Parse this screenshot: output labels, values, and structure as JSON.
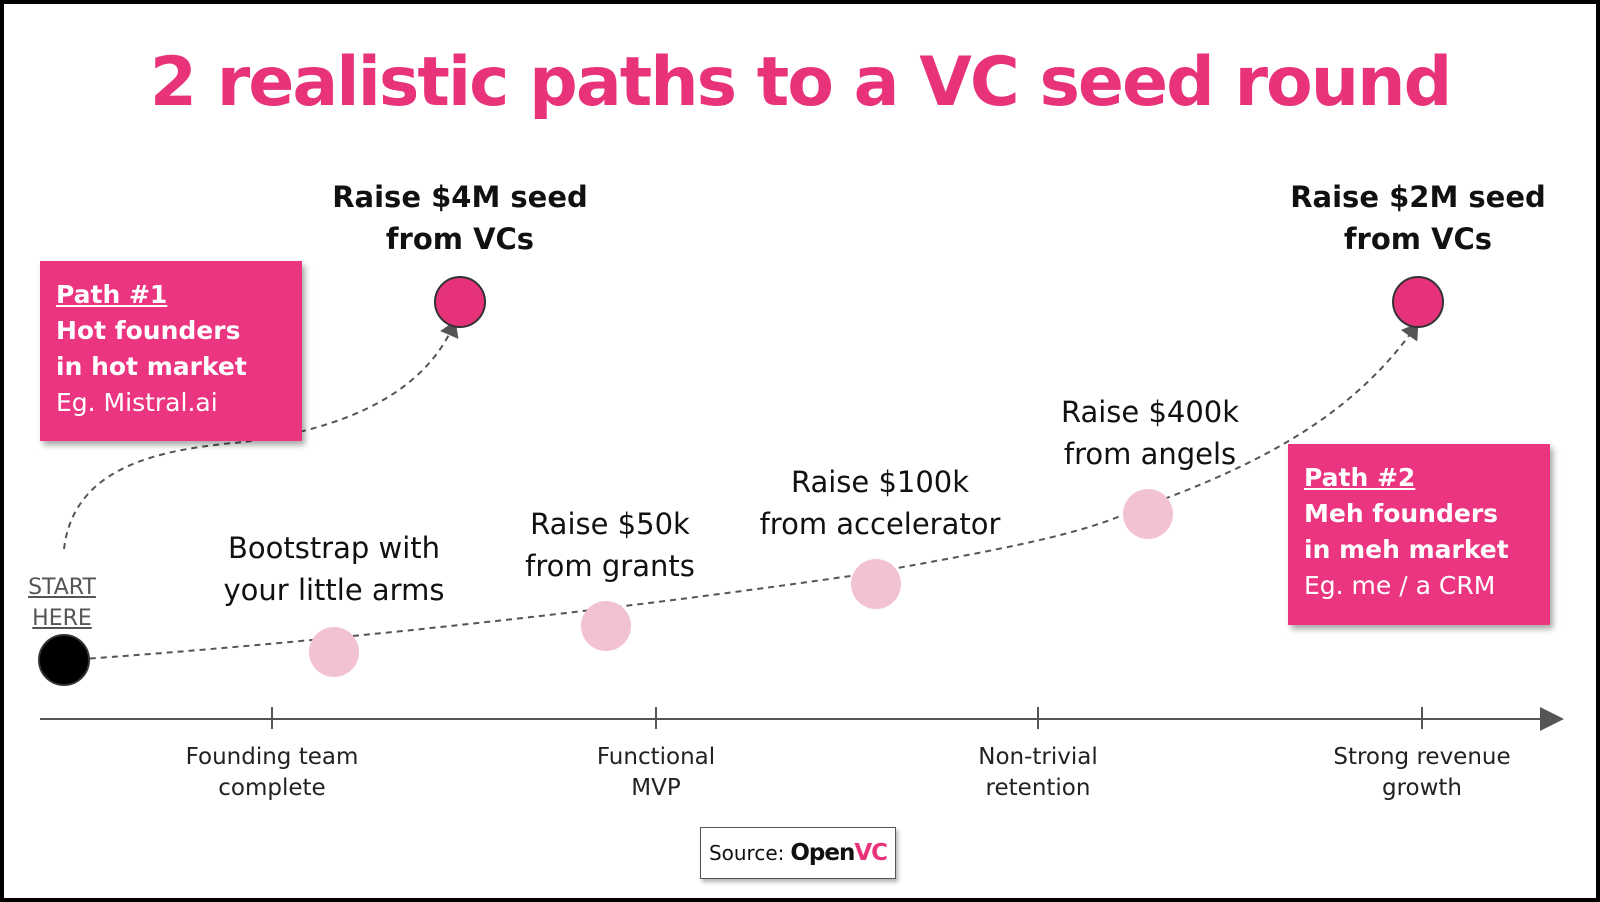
{
  "title": "2 realistic paths to a VC seed round",
  "start_label": [
    "START",
    "HERE"
  ],
  "path1": {
    "heading": "Path #1",
    "line1": "Hot founders",
    "line2": "in hot market",
    "example": "Eg. Mistral.ai"
  },
  "path2": {
    "heading": "Path #2",
    "line1": "Meh founders",
    "line2": "in meh market",
    "example": "Eg. me / a CRM"
  },
  "milestones": {
    "seed4m": [
      "Raise $4M seed",
      "from VCs"
    ],
    "seed2m": [
      "Raise $2M seed",
      "from VCs"
    ],
    "bootstrap": [
      "Bootstrap with",
      "your little arms"
    ],
    "grants": [
      "Raise $50k",
      "from grants"
    ],
    "accelerator": [
      "Raise $100k",
      "from accelerator"
    ],
    "angels": [
      "Raise $400k",
      "from angels"
    ]
  },
  "stages": [
    [
      "Founding team",
      "complete"
    ],
    [
      "Functional",
      "MVP"
    ],
    [
      "Non-trivial",
      "retention"
    ],
    [
      "Strong revenue",
      "growth"
    ]
  ],
  "source": {
    "prefix": "Source:",
    "brand_a": "Open",
    "brand_b": "VC"
  },
  "colors": {
    "accent": "#e8327a",
    "box": "#eb3580",
    "seed_node": "#e6327a",
    "step_node": "#f2c2d0",
    "start_node": "#000000"
  }
}
